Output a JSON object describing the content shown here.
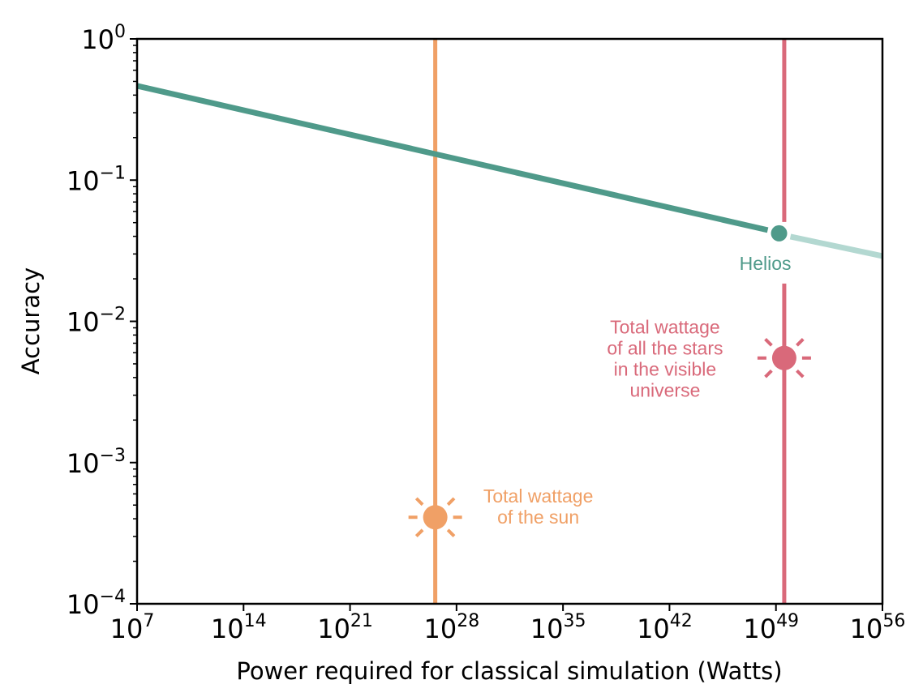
{
  "chart_data": {
    "type": "line",
    "xlabel": "Power required for classical simulation (Watts)",
    "ylabel": "Accuracy",
    "xscale": "log",
    "yscale": "log",
    "xlim": [
      10000000.0,
      1e+56
    ],
    "ylim": [
      0.0001,
      1
    ],
    "x_ticks": [
      7,
      14,
      21,
      28,
      35,
      42,
      49,
      56
    ],
    "y_ticks": [
      -4,
      -3,
      -2,
      -1,
      0
    ],
    "tick_base": "10",
    "grid": false,
    "series": [
      {
        "color": "#4f9a8a",
        "faded_color": "#b3d8d1",
        "x": [
          10000000.0,
          1.6e+49
        ],
        "y": [
          0.465,
          0.042
        ],
        "extrapolated": {
          "x": [
            1.6e+49,
            1e+56
          ],
          "y": [
            0.042,
            0.029
          ]
        }
      }
    ],
    "points": [
      {
        "label": "Helios",
        "x": 1.6e+49,
        "y": 0.042,
        "color": "#4f9a8a"
      }
    ],
    "vlines": [
      {
        "x": 4e+26,
        "color": "#f0a066",
        "marker_y": 0.00041,
        "label_lines": [
          "Total wattage",
          "of the sun"
        ]
      },
      {
        "x": 3.5e+49,
        "color": "#d9697a",
        "marker_y": 0.0055,
        "label_lines": [
          "Total wattage",
          "of all the stars",
          "in the visible",
          "universe"
        ]
      }
    ]
  }
}
